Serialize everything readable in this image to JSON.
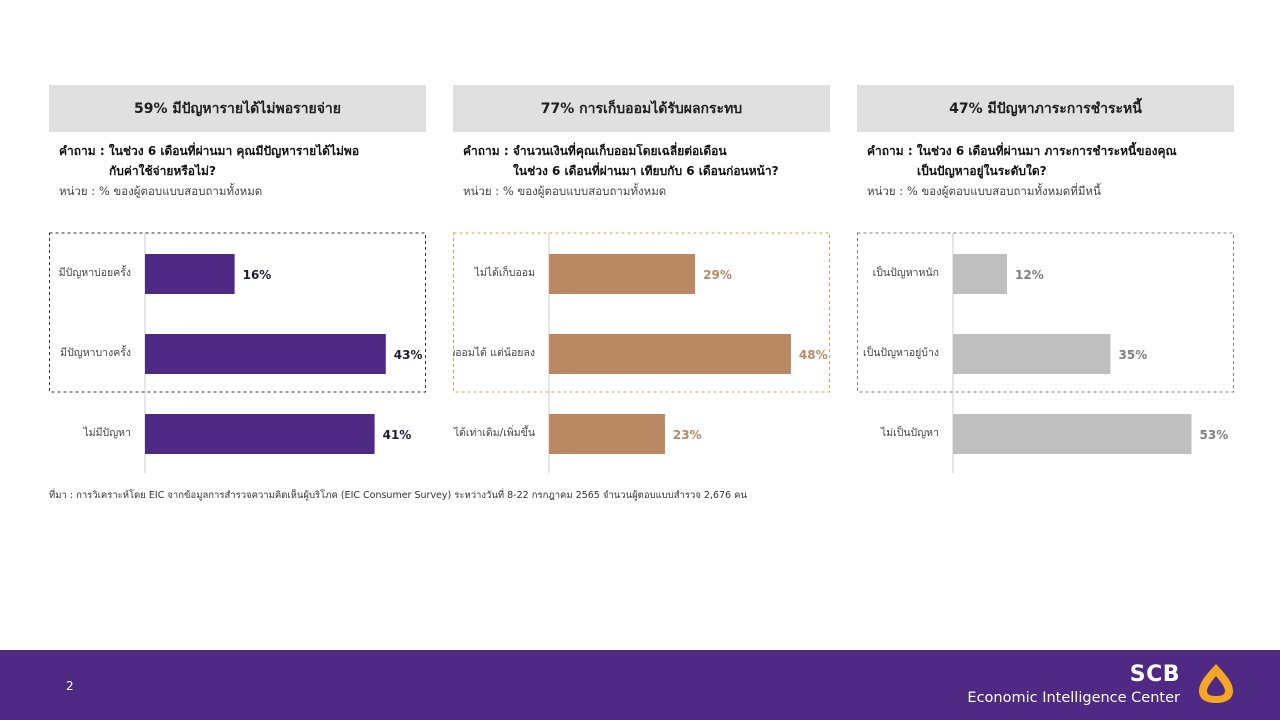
{
  "panels": [
    {
      "header": "59% มีปัญหารายได้ไม่พอรายจ่าย",
      "question_prefix": "คำถาม :",
      "question_line1": "ในช่วง 6 เดือนที่ผ่านมา คุณมีปัญหารายได้ไม่พอ",
      "question_line2": "กับค่าใช้จ่ายหรือไม่?",
      "unit": "หน่วย : % ของผู้ตอบแบบสอบถามทั้งหมด"
    },
    {
      "header": "77% การเก็บออมได้รับผลกระทบ",
      "question_prefix": "คำถาม :",
      "question_line1": "จำนวนเงินที่คุณเก็บออมโดยเฉลี่ยต่อเดือน",
      "question_line2": "ในช่วง 6 เดือนที่ผ่านมา เทียบกับ 6 เดือนก่อนหน้า?",
      "unit": "หน่วย : % ของผู้ตอบแบบสอบถามทั้งหมด"
    },
    {
      "header": "47% มีปัญหาภาระการชำระหนี้",
      "question_prefix": "คำถาม :",
      "question_line1": "ในช่วง 6 เดือนที่ผ่านมา ภาระการชำระหนี้ของคุณ",
      "question_line2": "เป็นปัญหาอยู่ในระดับใด?",
      "unit": "หน่วย : % ของผู้ตอบแบบสอบถามทั้งหมดที่มีหนี้"
    }
  ],
  "chart_data": [
    {
      "type": "bar",
      "orientation": "horizontal",
      "categories": [
        "มีปัญหาบ่อยครั้ง",
        "มีปัญหาบางครั้ง",
        "ไม่มีปัญหา"
      ],
      "values": [
        16,
        43,
        41
      ],
      "value_labels": [
        "16%",
        "43%",
        "41%"
      ],
      "xlim": [
        0,
        45
      ],
      "bar_color": "#4e2a84",
      "label_color": "#1e1e3c",
      "highlight_color": "#333333",
      "highlighted": [
        0,
        1
      ]
    },
    {
      "type": "bar",
      "orientation": "horizontal",
      "categories": [
        "ไม่ได้เก็บออม",
        "เก็บออมได้ แต่น้อยลง",
        "เก็บออมได้เท่าเดิม/เพิ่มขึ้น"
      ],
      "values": [
        29,
        48,
        23
      ],
      "value_labels": [
        "29%",
        "48%",
        "23%"
      ],
      "xlim": [
        0,
        50
      ],
      "bar_color": "#b98963",
      "label_color": "#b98963",
      "highlight_color": "#d9a453",
      "highlighted": [
        0,
        1
      ]
    },
    {
      "type": "bar",
      "orientation": "horizontal",
      "categories": [
        "เป็นปัญหาหนัก",
        "เป็นปัญหาอยู่บ้าง",
        "ไม่เป็นปัญหา"
      ],
      "values": [
        12,
        35,
        53
      ],
      "value_labels": [
        "12%",
        "35%",
        "53%"
      ],
      "xlim": [
        0,
        56
      ],
      "bar_color": "#bfbfbf",
      "label_color": "#808080",
      "highlight_color": "#808080",
      "highlighted": [
        0,
        1
      ]
    }
  ],
  "source": "ที่มา : การวิเคราะห์โดย EIC จากข้อมูลการสำรวจความคิดเห็นผู้บริโภค (EIC Consumer Survey) ระหว่างวันที่ 8-22 กรกฎาคม 2565 จำนวนผู้ตอบแบบสำรวจ 2,676 คน",
  "footer": {
    "page_number": "2",
    "brand_name": "SCB",
    "brand_sub": "Economic Intelligence Center",
    "logo_icon": "scb-logo-icon",
    "logo_color": "#f5a623"
  }
}
